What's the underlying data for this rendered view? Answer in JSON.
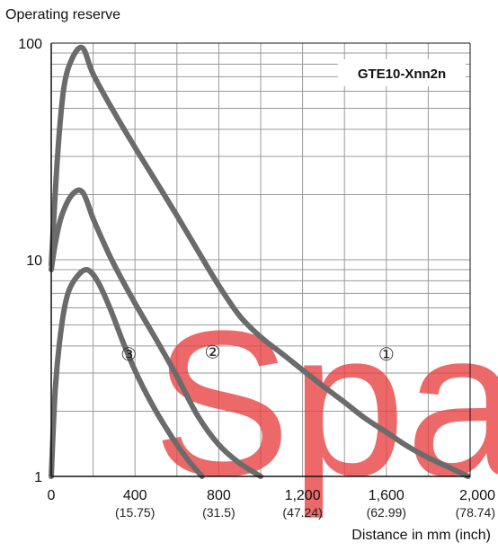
{
  "chart_data": {
    "type": "line",
    "title": "",
    "model_label": "GTE10-Xnn2n",
    "ylabel": "Operating reserve",
    "xlabel": "Distance in mm (inch)",
    "y_scale": "log",
    "ylim": [
      1,
      100
    ],
    "xlim": [
      0,
      2000
    ],
    "grid": true,
    "y_ticks": [
      {
        "value": 1,
        "label": "1"
      },
      {
        "value": 10,
        "label": "10"
      },
      {
        "value": 100,
        "label": "100"
      }
    ],
    "x_ticks": [
      {
        "value": 0,
        "label": "0",
        "sub": ""
      },
      {
        "value": 400,
        "label": "400",
        "sub": "(15.75)"
      },
      {
        "value": 800,
        "label": "800",
        "sub": "(31.5)"
      },
      {
        "value": 1200,
        "label": "1,200",
        "sub": "(47.24)"
      },
      {
        "value": 1600,
        "label": "1,600",
        "sub": "(62.99)"
      },
      {
        "value": 2000,
        "label": "2,000",
        "sub": "(78.74)"
      }
    ],
    "series": [
      {
        "name": "①",
        "label_at": [
          1600,
          3.7
        ],
        "x": [
          0,
          30,
          60,
          100,
          150,
          200,
          300,
          400,
          500,
          600,
          700,
          800,
          900,
          1000,
          1100,
          1200,
          1300,
          1400,
          1500,
          1600,
          1700,
          1800,
          1900,
          1990
        ],
        "y": [
          9.5,
          30,
          62,
          85,
          95,
          72,
          48,
          33,
          23,
          16,
          11,
          7.6,
          5.5,
          4.4,
          3.7,
          3.1,
          2.6,
          2.2,
          1.85,
          1.6,
          1.38,
          1.22,
          1.1,
          1.0
        ]
      },
      {
        "name": "②",
        "label_at": [
          770,
          3.8
        ],
        "x": [
          0,
          20,
          50,
          100,
          150,
          200,
          250,
          300,
          400,
          500,
          600,
          700,
          800,
          900,
          1000
        ],
        "y": [
          9.0,
          12,
          16,
          20,
          20.5,
          15.5,
          12,
          9.5,
          6.3,
          4.3,
          2.9,
          1.9,
          1.4,
          1.15,
          1.0
        ]
      },
      {
        "name": "③",
        "label_at": [
          370,
          3.7
        ],
        "x": [
          0,
          20,
          50,
          80,
          120,
          170,
          220,
          280,
          350,
          420,
          500,
          580,
          650,
          720
        ],
        "y": [
          1.0,
          2.6,
          5.0,
          7.0,
          8.3,
          9.0,
          8.0,
          6.0,
          4.0,
          2.8,
          2.0,
          1.5,
          1.2,
          1.0
        ]
      }
    ],
    "colors": {
      "curve": "#6b6b6b",
      "grid": "#9a9a9a",
      "axis": "#111111",
      "watermark": "#e84040"
    }
  },
  "watermark": {
    "text": "Spa"
  }
}
